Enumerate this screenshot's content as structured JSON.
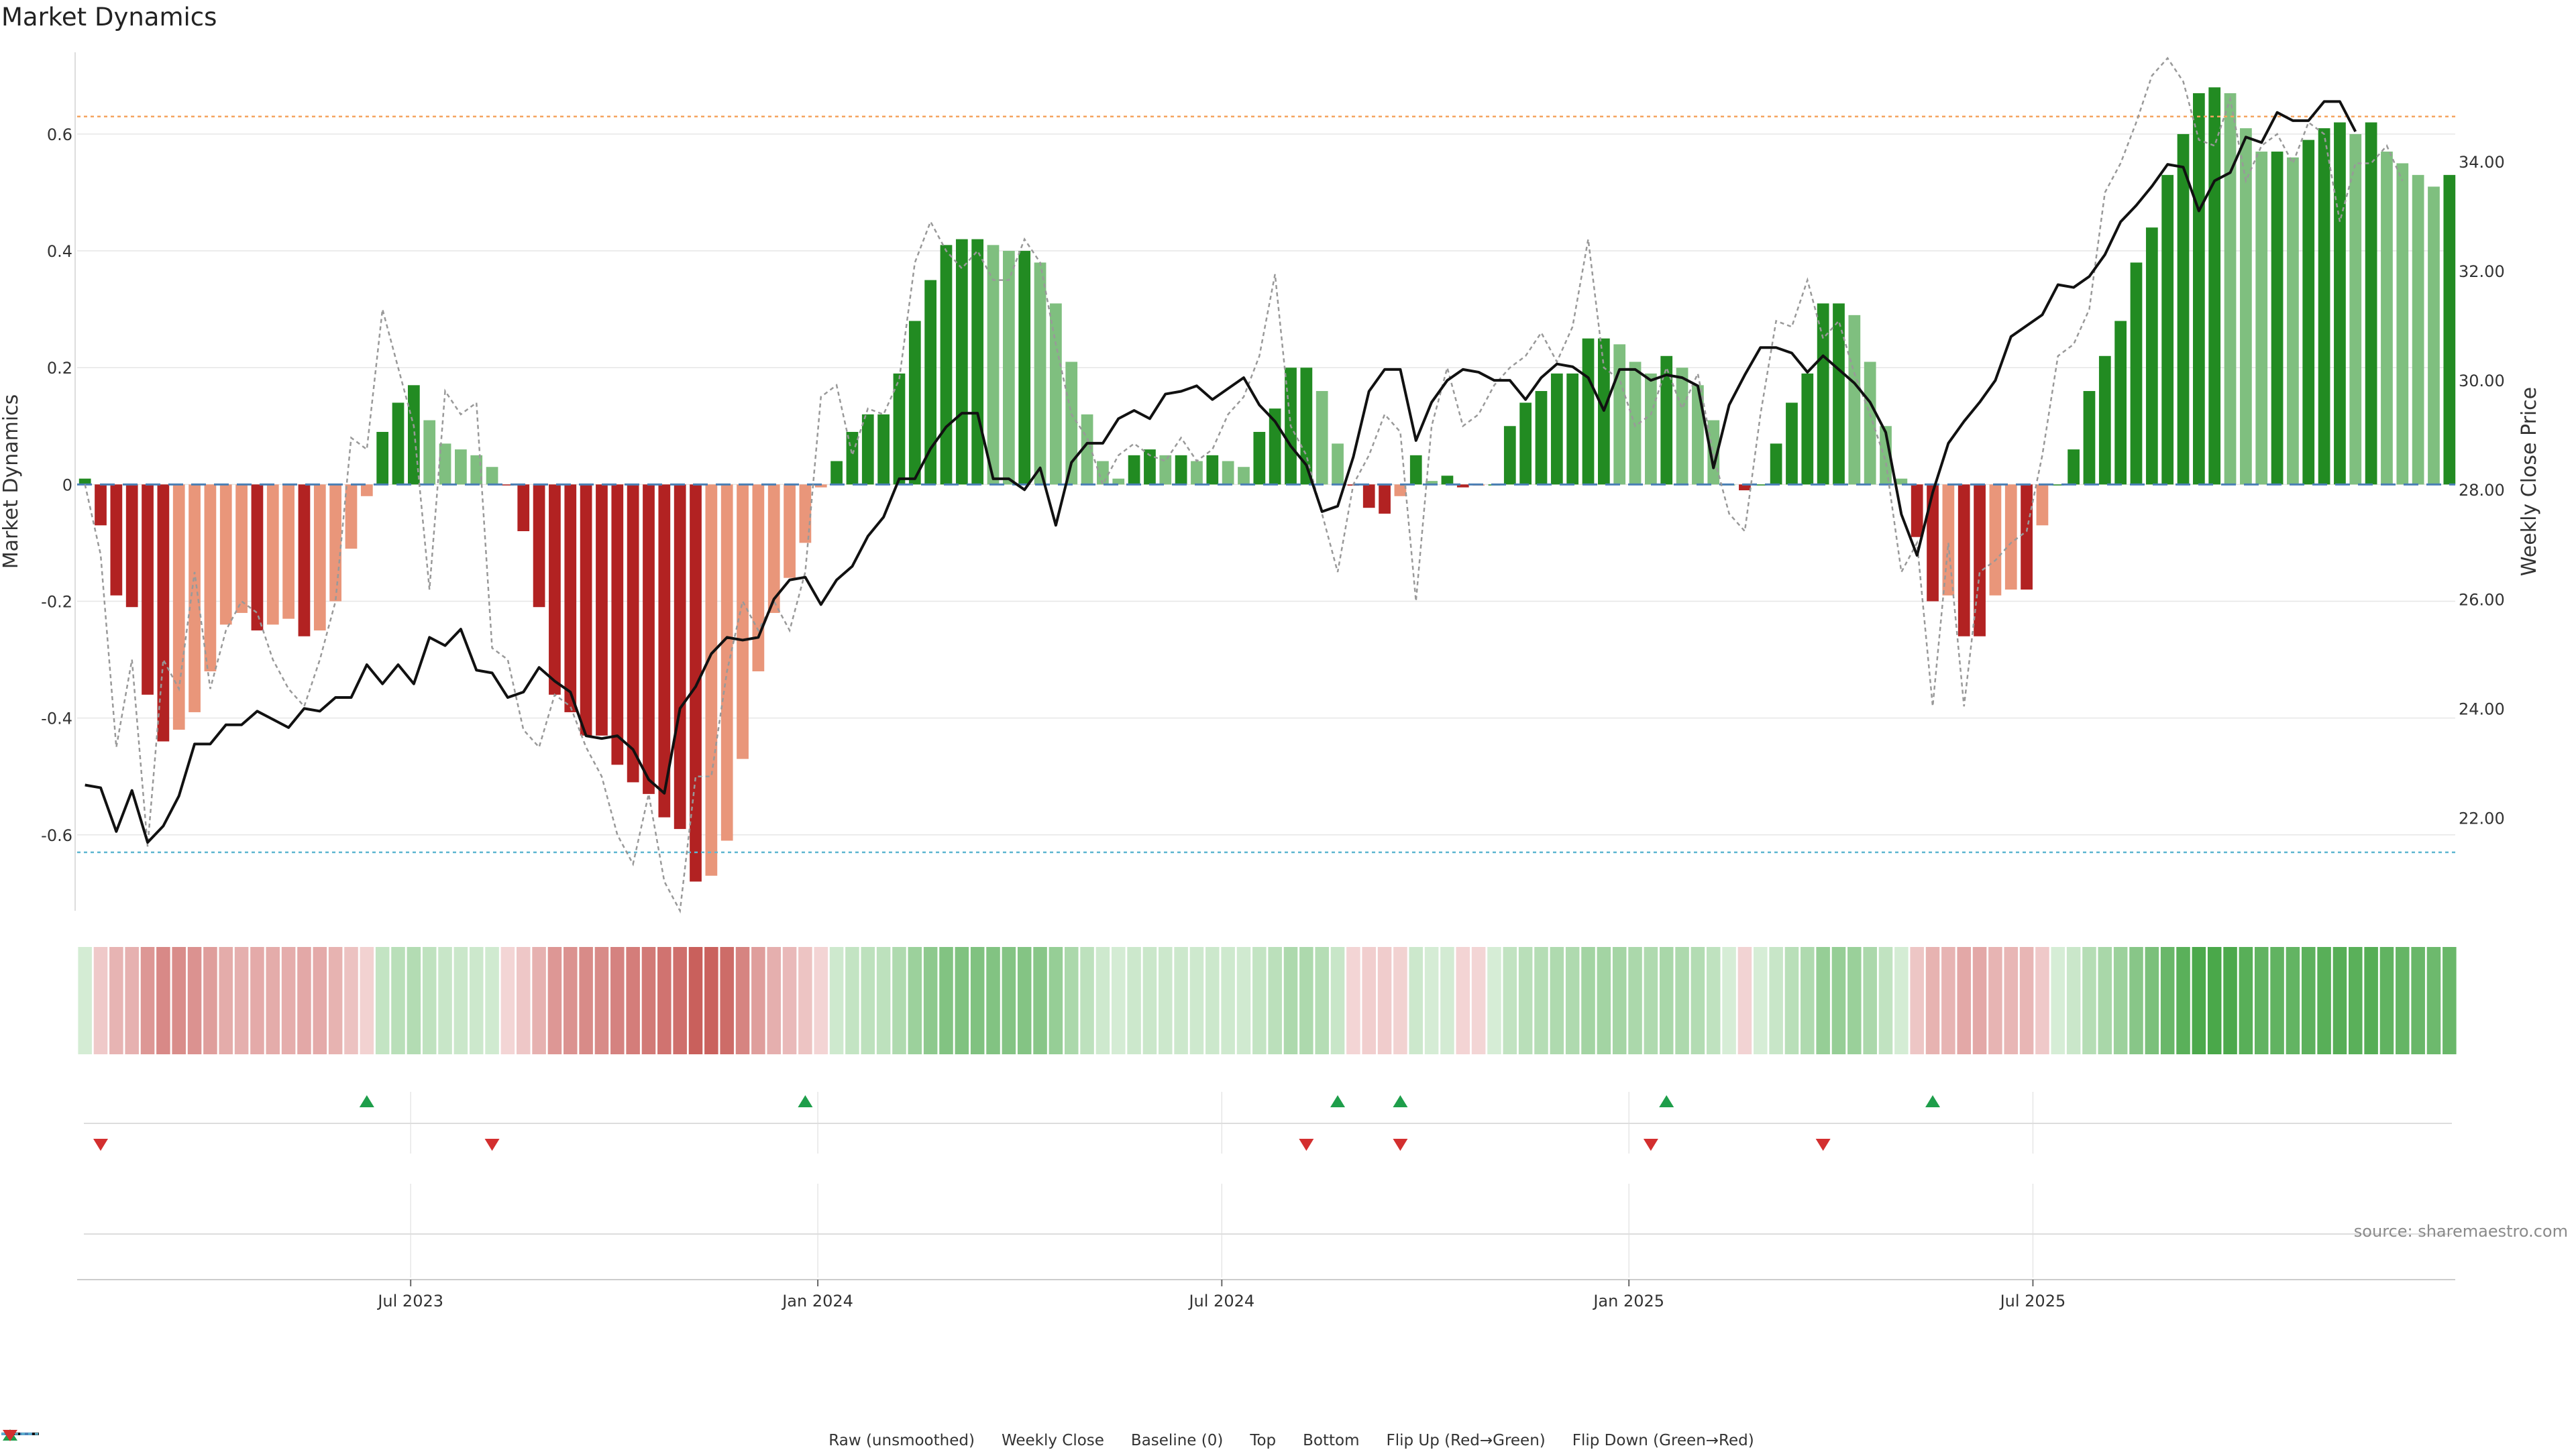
{
  "title": "Market Dynamics",
  "source": "source: sharemaestro.com",
  "chart_data": {
    "type": "bar",
    "ylabel": "Market Dynamics",
    "y2label": "Weekly Close Price",
    "ylim": [
      -0.73,
      0.74
    ],
    "y2lim": [
      20.3,
      36.0
    ],
    "yticks": [
      "-0.6",
      "-0.4",
      "-0.2",
      "0",
      "0.2",
      "0.4",
      "0.6"
    ],
    "y2ticks": [
      "22.00",
      "24.00",
      "26.00",
      "28.00",
      "30.00",
      "32.00",
      "34.00"
    ],
    "xticks": [
      "Jul 2023",
      "Jan 2024",
      "Jul 2024",
      "Jan 2025",
      "Jul 2025"
    ],
    "xtick_index": [
      20.8,
      46.8,
      72.6,
      98.6,
      124.4
    ],
    "top_line": 0.63,
    "bottom_line": -0.63,
    "dynamics": [
      0.01,
      -0.07,
      -0.19,
      -0.21,
      -0.36,
      -0.44,
      -0.42,
      -0.39,
      -0.32,
      -0.24,
      -0.22,
      -0.25,
      -0.24,
      -0.23,
      -0.26,
      -0.25,
      -0.2,
      -0.11,
      -0.02,
      0.09,
      0.14,
      0.17,
      0.11,
      0.07,
      0.06,
      0.05,
      0.03,
      -0.001,
      -0.08,
      -0.21,
      -0.36,
      -0.39,
      -0.43,
      -0.43,
      -0.48,
      -0.51,
      -0.53,
      -0.57,
      -0.59,
      -0.68,
      -0.67,
      -0.61,
      -0.47,
      -0.32,
      -0.22,
      -0.16,
      -0.1,
      -0.005,
      0.04,
      0.09,
      0.12,
      0.12,
      0.19,
      0.28,
      0.35,
      0.41,
      0.42,
      0.42,
      0.41,
      0.4,
      0.4,
      0.38,
      0.31,
      0.21,
      0.12,
      0.04,
      0.01,
      0.05,
      0.06,
      0.05,
      0.05,
      0.04,
      0.05,
      0.04,
      0.03,
      0.09,
      0.13,
      0.2,
      0.2,
      0.16,
      0.07,
      -0.002,
      -0.04,
      -0.05,
      -0.02,
      0.05,
      0.006,
      0.015,
      -0.005,
      -0.002,
      0.0,
      0.1,
      0.14,
      0.16,
      0.19,
      0.19,
      0.25,
      0.25,
      0.24,
      0.21,
      0.19,
      0.22,
      0.2,
      0.17,
      0.11,
      0.0,
      -0.01,
      0.0,
      0.07,
      0.14,
      0.19,
      0.31,
      0.31,
      0.29,
      0.21,
      0.1,
      0.01,
      -0.09,
      -0.2,
      -0.19,
      -0.26,
      -0.26,
      -0.19,
      -0.18,
      -0.18,
      -0.07,
      0.0,
      0.06,
      0.16,
      0.22,
      0.28,
      0.38,
      0.44,
      0.53,
      0.6,
      0.67,
      0.68,
      0.67,
      0.61,
      0.57,
      0.57,
      0.56,
      0.59,
      0.61,
      0.62,
      0.6,
      0.62,
      0.57,
      0.55,
      0.53,
      0.51,
      0.53
    ],
    "raw": [
      0.0,
      -0.12,
      -0.45,
      -0.3,
      -0.62,
      -0.3,
      -0.35,
      -0.15,
      -0.35,
      -0.25,
      -0.2,
      -0.22,
      -0.3,
      -0.35,
      -0.38,
      -0.3,
      -0.2,
      0.08,
      0.06,
      0.3,
      0.2,
      0.1,
      -0.18,
      0.16,
      0.12,
      0.14,
      -0.28,
      -0.3,
      -0.42,
      -0.45,
      -0.36,
      -0.38,
      -0.45,
      -0.5,
      -0.6,
      -0.65,
      -0.53,
      -0.68,
      -0.73,
      -0.5,
      -0.5,
      -0.32,
      -0.2,
      -0.25,
      -0.2,
      -0.25,
      -0.15,
      0.15,
      0.17,
      0.05,
      0.13,
      0.12,
      0.18,
      0.38,
      0.45,
      0.4,
      0.37,
      0.4,
      0.35,
      0.35,
      0.42,
      0.38,
      0.24,
      0.12,
      0.08,
      0.0,
      0.05,
      0.07,
      0.05,
      0.04,
      0.08,
      0.04,
      0.06,
      0.12,
      0.15,
      0.22,
      0.36,
      0.1,
      0.05,
      -0.05,
      -0.15,
      0.0,
      0.05,
      0.12,
      0.09,
      -0.2,
      0.1,
      0.2,
      0.1,
      0.12,
      0.17,
      0.2,
      0.22,
      0.26,
      0.21,
      0.27,
      0.42,
      0.2,
      0.18,
      0.1,
      0.12,
      0.2,
      0.13,
      0.19,
      0.05,
      -0.05,
      -0.08,
      0.12,
      0.28,
      0.27,
      0.35,
      0.25,
      0.28,
      0.19,
      0.12,
      0.04,
      -0.15,
      -0.1,
      -0.38,
      -0.1,
      -0.38,
      -0.15,
      -0.13,
      -0.1,
      -0.08,
      0.05,
      0.22,
      0.24,
      0.3,
      0.5,
      0.55,
      0.62,
      0.7,
      0.73,
      0.69,
      0.59,
      0.58,
      0.66,
      0.52,
      0.58,
      0.6,
      0.55,
      0.62,
      0.6,
      0.45,
      0.55,
      0.55,
      0.58,
      0.52
    ],
    "close": [
      22.6,
      22.55,
      21.75,
      22.5,
      21.55,
      21.85,
      22.4,
      23.35,
      23.35,
      23.7,
      23.7,
      23.95,
      23.8,
      23.65,
      24.0,
      23.95,
      24.2,
      24.2,
      24.8,
      24.45,
      24.8,
      24.45,
      25.3,
      25.15,
      25.45,
      24.7,
      24.65,
      24.2,
      24.3,
      24.75,
      24.5,
      24.3,
      23.5,
      23.45,
      23.5,
      23.25,
      22.7,
      22.45,
      24.0,
      24.4,
      25.0,
      25.3,
      25.25,
      25.3,
      26.0,
      26.35,
      26.4,
      25.9,
      26.35,
      26.6,
      27.15,
      27.5,
      28.2,
      28.2,
      28.75,
      29.15,
      29.4,
      29.4,
      28.2,
      28.2,
      28.0,
      28.4,
      27.35,
      28.5,
      28.85,
      28.85,
      29.3,
      29.45,
      29.3,
      29.75,
      29.8,
      29.9,
      29.65,
      29.85,
      30.05,
      29.55,
      29.25,
      28.8,
      28.45,
      27.6,
      27.7,
      28.6,
      29.8,
      30.2,
      30.2,
      28.9,
      29.6,
      30.0,
      30.2,
      30.15,
      30.0,
      30.0,
      29.65,
      30.05,
      30.3,
      30.25,
      30.05,
      29.45,
      30.2,
      30.2,
      30.0,
      30.1,
      30.05,
      29.9,
      28.4,
      29.55,
      30.1,
      30.6,
      30.6,
      30.5,
      30.15,
      30.45,
      30.2,
      29.95,
      29.6,
      29.05,
      27.55,
      26.8,
      27.95,
      28.85,
      29.25,
      29.6,
      30.0,
      30.8,
      31.0,
      31.2,
      31.75,
      31.7,
      31.9,
      32.3,
      32.9,
      33.2,
      33.55,
      33.95,
      33.9,
      33.1,
      33.65,
      33.8,
      34.45,
      34.35,
      34.9,
      34.75,
      34.75,
      35.1,
      35.1,
      34.55
    ],
    "flip_up_index": [
      18,
      46,
      80,
      84,
      101,
      118
    ],
    "flip_down_index": [
      1,
      26,
      78,
      84,
      100,
      111
    ],
    "legend": [
      "Raw (unsmoothed)",
      "Weekly Close",
      "Baseline (0)",
      "Top",
      "Bottom",
      "Flip Up (Red→Green)",
      "Flip Down (Green→Red)"
    ],
    "colors": {
      "up_strong": "#228b22",
      "up_weak": "#7fbf7f",
      "down_strong": "#b22222",
      "down_weak": "#e9967a",
      "close": "#111111",
      "raw": "#999999",
      "baseline": "#4a7fb5",
      "top": "#f4a460",
      "bottom": "#5fb6d1",
      "flip_up": "#1e9e4a",
      "flip_down": "#d32f2f",
      "grid": "#e6e6e6"
    }
  }
}
